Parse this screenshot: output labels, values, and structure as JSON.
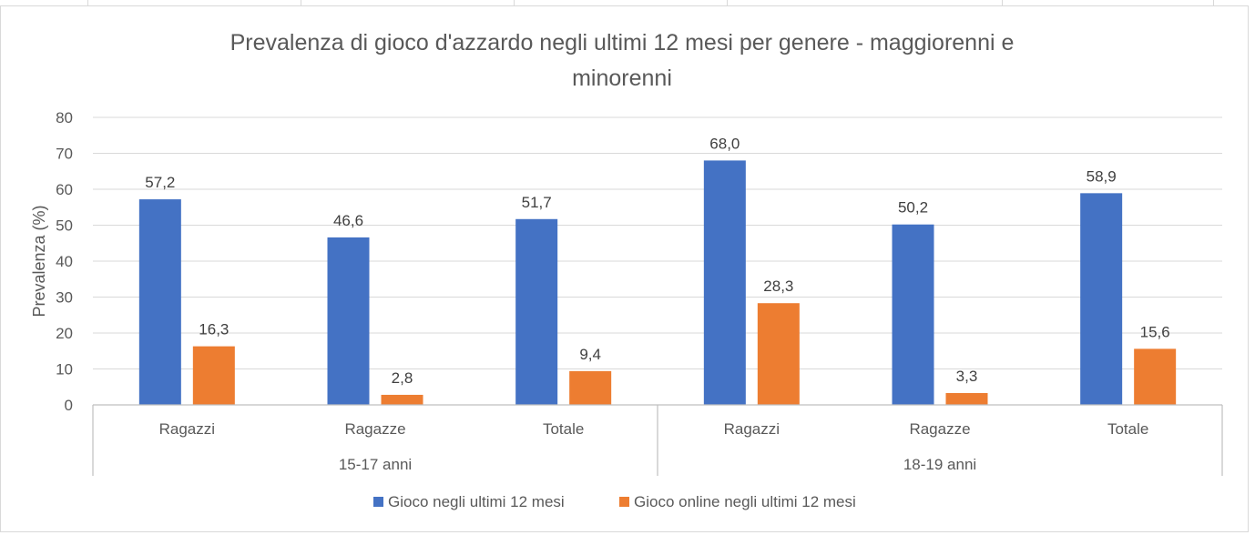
{
  "chart_data": {
    "type": "bar",
    "title": "Prevalenza di gioco d'azzardo negli ultimi 12 mesi per genere - maggiorenni e minorenni",
    "title_lines": [
      "Prevalenza di gioco d'azzardo negli ultimi 12 mesi per genere - maggiorenni e",
      "minorenni"
    ],
    "ylabel": "Prevalenza (%)",
    "xlabel": "",
    "ylim": [
      0,
      80
    ],
    "yticks": [
      "0",
      "10",
      "20",
      "30",
      "40",
      "50",
      "60",
      "70",
      "80"
    ],
    "grid": true,
    "legend_position": "bottom",
    "groups": [
      {
        "label": "15-17 anni",
        "categories": [
          "Ragazzi",
          "Ragazze",
          "Totale"
        ]
      },
      {
        "label": "18-19 anni",
        "categories": [
          "Ragazzi",
          "Ragazze",
          "Totale"
        ]
      }
    ],
    "categories": [
      "Ragazzi",
      "Ragazze",
      "Totale",
      "Ragazzi",
      "Ragazze",
      "Totale"
    ],
    "series": [
      {
        "name": "Gioco negli ultimi 12 mesi",
        "color": "#4472c4",
        "values": [
          57.2,
          46.6,
          51.7,
          68.0,
          50.2,
          58.9
        ],
        "labels": [
          "57,2",
          "46,6",
          "51,7",
          "68,0",
          "50,2",
          "58,9"
        ]
      },
      {
        "name": "Gioco online negli ultimi 12 mesi",
        "color": "#ed7d31",
        "values": [
          16.3,
          2.8,
          9.4,
          28.3,
          3.3,
          15.6
        ],
        "labels": [
          "16,3",
          "2,8",
          "9,4",
          "28,3",
          "3,3",
          "15,6"
        ]
      }
    ]
  }
}
